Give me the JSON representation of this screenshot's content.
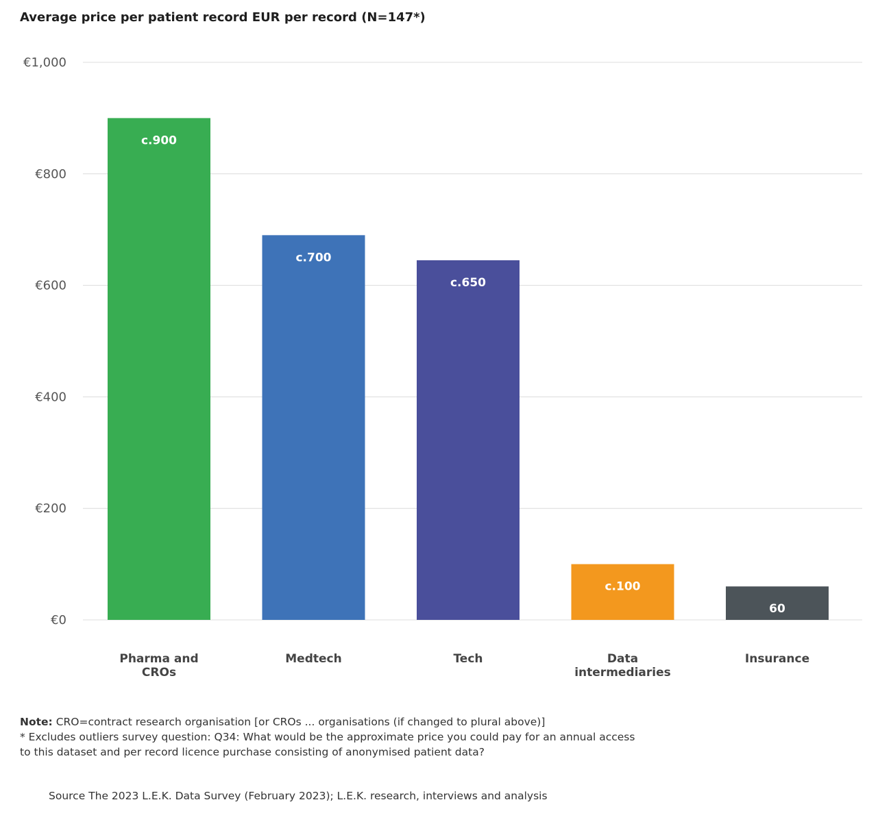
{
  "chart_data": {
    "type": "bar",
    "title": "Average price per patient record EUR per record (N=147*)",
    "categories": [
      "Pharma and CROs",
      "Medtech",
      "Tech",
      "Data intermediaries",
      "Insurance"
    ],
    "category_lines": [
      [
        "Pharma and",
        "CROs"
      ],
      [
        "Medtech"
      ],
      [
        "Tech"
      ],
      [
        "Data",
        "intermediaries"
      ],
      [
        "Insurance"
      ]
    ],
    "values": [
      900,
      690,
      645,
      100,
      60
    ],
    "data_labels": [
      "c.900",
      "c.700",
      "c.650",
      "c.100",
      "60"
    ],
    "colors": [
      "#38ad52",
      "#3e73b8",
      "#4a4f9b",
      "#f3981e",
      "#4c5459"
    ],
    "label_colors": [
      "#ffffff",
      "#ffffff",
      "#ffffff",
      "#ffffff",
      "#ffffff"
    ],
    "ylim": [
      0,
      1000
    ],
    "yticks": [
      0,
      200,
      400,
      600,
      800,
      1000
    ],
    "ytick_labels": [
      "€0",
      "€200",
      "€400",
      "€600",
      "€800",
      "€1,000"
    ],
    "grid": true,
    "xlabel": "",
    "ylabel": ""
  },
  "note": {
    "label": "Note:",
    "line1": "CRO=contract research organisation [or CROs ... organisations (if changed to plural above)]",
    "line2": "* Excludes outliers survey question: Q34: What would be the approximate price you could pay for an annual access to this dataset and per record licence purchase consisting of anonymised patient data?"
  },
  "source": "Source The 2023 L.E.K. Data Survey (February 2023); L.E.K. research, interviews and analysis"
}
